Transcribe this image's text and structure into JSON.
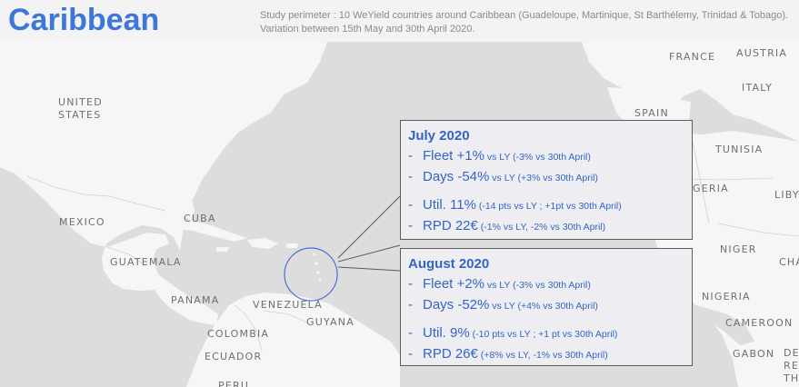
{
  "header": {
    "title": "Caribbean",
    "subtitle": "Study perimeter : 10 WeYield countries around Caribbean (Guadeloupe, Martinique, St Barthélemy, Trinidad & Tobago). Variation between 15th May and 30th April 2020."
  },
  "map": {
    "labels": {
      "united_states_1": "UNITED",
      "united_states_2": "STATES",
      "mexico": "MEXICO",
      "cuba": "CUBA",
      "guatemala": "GUATEMALA",
      "panama": "PANAMA",
      "venezuela": "VENEZUELA",
      "guyana": "GUYANA",
      "colombia": "COLOMBIA",
      "ecuador": "ECUADOR",
      "peru": "PERU",
      "france": "FRANCE",
      "austria": "AUSTRIA",
      "italy": "ITALY",
      "spain": "SPAIN",
      "tunisia": "TUNISIA",
      "algeria": "GERIA",
      "libya": "LIBY",
      "niger": "NIGER",
      "chad": "CHA",
      "nigeria": "NIGERIA",
      "cameroon": "CAMEROON",
      "gabon": "GABON",
      "drc_1": "DE",
      "drc_2": "RE",
      "drc_3": "TH"
    }
  },
  "july": {
    "title": "July 2020",
    "fleet_main": "Fleet +1%",
    "fleet_note": " vs LY (-3% vs 30th April)",
    "days_main": "Days -54%",
    "days_note": " vs LY (+3% vs 30th April)",
    "util_main": "Util. 11%",
    "util_note": " (-14 pts vs LY ; +1pt vs 30th April)",
    "rpd_main": "RPD 22€",
    "rpd_note": " (-1% vs LY, -2% vs 30th April)"
  },
  "august": {
    "title": "August 2020",
    "fleet_main": "Fleet +2%",
    "fleet_note": " vs LY (-3% vs 30th April)",
    "days_main": "Days -52%",
    "days_note": " vs LY (+4% vs 30th April)",
    "util_main": "Util. 9%",
    "util_note": " (-10 pts vs LY ; +1 pt vs 30th April)",
    "rpd_main": "RPD 26€",
    "rpd_note": " (+8% vs LY, -1% vs 30th April)"
  },
  "colors": {
    "title": "#3d78d8",
    "text_blue": "#3464c4",
    "land": "#f6f6f6",
    "water": "#dddddd",
    "callout_border": "#5b5b5b",
    "circle": "#4a6fd6"
  }
}
